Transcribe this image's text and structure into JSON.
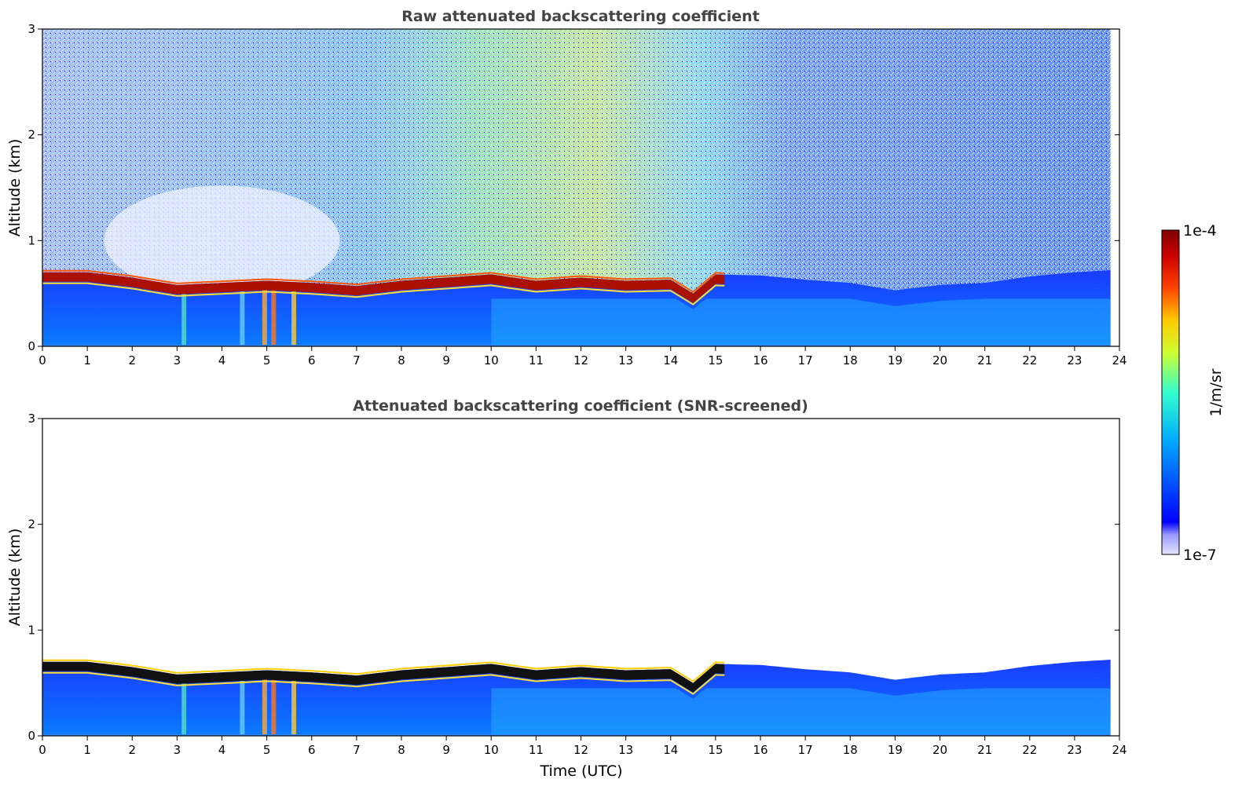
{
  "chart_data": [
    {
      "type": "heatmap",
      "title": "Raw attenuated backscattering coefficient",
      "xlabel": "",
      "ylabel": "Altitude (km)",
      "xlim": [
        0,
        24
      ],
      "ylim": [
        0,
        3
      ],
      "x_ticks": [
        "0",
        "1",
        "2",
        "3",
        "4",
        "5",
        "6",
        "7",
        "8",
        "9",
        "10",
        "11",
        "12",
        "13",
        "14",
        "15",
        "16",
        "17",
        "18",
        "19",
        "20",
        "21",
        "22",
        "23",
        "24"
      ],
      "y_ticks": [
        "0",
        "1",
        "2",
        "3"
      ],
      "data_end_time": 23.8,
      "layer_top_km": {
        "x": [
          0,
          1,
          2,
          3,
          4,
          5,
          6,
          7,
          8,
          9,
          10,
          11,
          12,
          13,
          14,
          14.5,
          15,
          16,
          17,
          18,
          19,
          20,
          21,
          22,
          23,
          23.8
        ],
        "y": [
          0.7,
          0.7,
          0.65,
          0.58,
          0.6,
          0.62,
          0.6,
          0.57,
          0.62,
          0.65,
          0.68,
          0.62,
          0.65,
          0.62,
          0.63,
          0.5,
          0.68,
          0.67,
          0.63,
          0.6,
          0.53,
          0.58,
          0.6,
          0.66,
          0.7,
          0.72
        ]
      },
      "strong_layer_until": 15.2,
      "noise_high_region": [
        8,
        14
      ]
    },
    {
      "type": "heatmap",
      "title": "Attenuated backscattering coefficient (SNR-screened)",
      "xlabel": "Time (UTC)",
      "ylabel": "Altitude (km)",
      "xlim": [
        0,
        24
      ],
      "ylim": [
        0,
        3
      ],
      "x_ticks": [
        "0",
        "1",
        "2",
        "3",
        "4",
        "5",
        "6",
        "7",
        "8",
        "9",
        "10",
        "11",
        "12",
        "13",
        "14",
        "15",
        "16",
        "17",
        "18",
        "19",
        "20",
        "21",
        "22",
        "23",
        "24"
      ],
      "y_ticks": [
        "0",
        "1",
        "2",
        "3"
      ],
      "data_end_time": 23.8
    }
  ],
  "colorbar": {
    "label": "1/m/sr",
    "max_label": "1e-4",
    "min_label": "1e-7",
    "colormap": "jet",
    "colors": [
      "#e6e6ff",
      "#0000ff",
      "#00aaff",
      "#33ffcc",
      "#ccff33",
      "#ffcc00",
      "#ff4400",
      "#aa0000",
      "#800000"
    ]
  }
}
